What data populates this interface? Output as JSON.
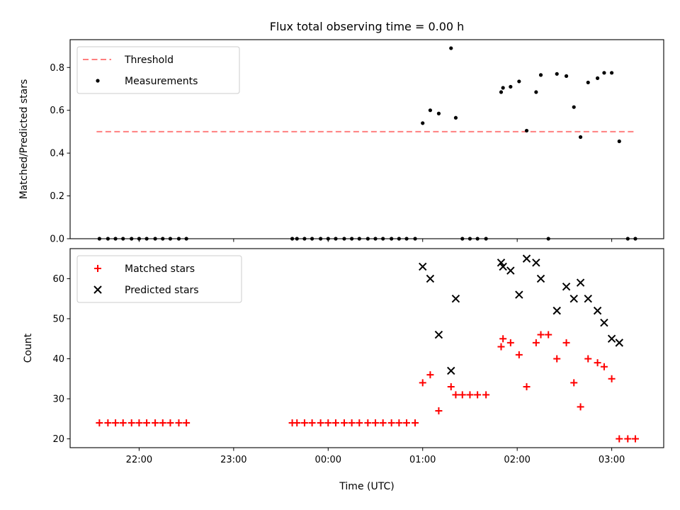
{
  "figure": {
    "title": "Flux total observing time = 0.00 h"
  },
  "chart_data": [
    {
      "type": "scatter",
      "panel": "top",
      "ylabel": "Matched/Predicted stars",
      "ylim": [
        0.0,
        0.93
      ],
      "yticks": [
        0.0,
        0.2,
        0.4,
        0.6,
        0.8
      ],
      "xlim": [
        -2.73,
        3.55
      ],
      "xtick_values": [
        -2,
        -1,
        0,
        1,
        2,
        3
      ],
      "grid": false,
      "legend_position": "upper left",
      "threshold": {
        "name": "Threshold",
        "y": 0.5,
        "x": [
          -2.45,
          3.25
        ],
        "color": "#ff7f7f",
        "style": "dashed"
      },
      "series": [
        {
          "name": "Measurements",
          "color": "#000000",
          "marker": "dot",
          "points": [
            [
              -2.42,
              0
            ],
            [
              -2.33,
              0
            ],
            [
              -2.25,
              0
            ],
            [
              -2.17,
              0
            ],
            [
              -2.08,
              0
            ],
            [
              -2.0,
              0
            ],
            [
              -1.92,
              0
            ],
            [
              -1.83,
              0
            ],
            [
              -1.75,
              0
            ],
            [
              -1.67,
              0
            ],
            [
              -1.58,
              0
            ],
            [
              -1.5,
              0
            ],
            [
              -0.38,
              0
            ],
            [
              -0.33,
              0
            ],
            [
              -0.25,
              0
            ],
            [
              -0.17,
              0
            ],
            [
              -0.08,
              0
            ],
            [
              0.0,
              0
            ],
            [
              0.08,
              0
            ],
            [
              0.17,
              0
            ],
            [
              0.25,
              0
            ],
            [
              0.33,
              0
            ],
            [
              0.42,
              0
            ],
            [
              0.5,
              0
            ],
            [
              0.58,
              0
            ],
            [
              0.67,
              0
            ],
            [
              0.75,
              0
            ],
            [
              0.83,
              0
            ],
            [
              0.92,
              0
            ],
            [
              1.0,
              0.54
            ],
            [
              1.08,
              0.6
            ],
            [
              1.17,
              0.585
            ],
            [
              1.3,
              0.89
            ],
            [
              1.35,
              0.565
            ],
            [
              1.42,
              0
            ],
            [
              1.5,
              0
            ],
            [
              1.58,
              0
            ],
            [
              1.67,
              0
            ],
            [
              1.83,
              0.685
            ],
            [
              1.85,
              0.705
            ],
            [
              1.93,
              0.71
            ],
            [
              2.02,
              0.735
            ],
            [
              2.1,
              0.505
            ],
            [
              2.2,
              0.685
            ],
            [
              2.25,
              0.765
            ],
            [
              2.33,
              0
            ],
            [
              2.42,
              0.77
            ],
            [
              2.52,
              0.76
            ],
            [
              2.6,
              0.615
            ],
            [
              2.67,
              0.475
            ],
            [
              2.75,
              0.73
            ],
            [
              2.85,
              0.75
            ],
            [
              2.92,
              0.775
            ],
            [
              3.0,
              0.775
            ],
            [
              3.08,
              0.455
            ],
            [
              3.17,
              0
            ],
            [
              3.25,
              0
            ]
          ]
        }
      ]
    },
    {
      "type": "scatter",
      "panel": "bottom",
      "xlabel": "Time (UTC)",
      "ylabel": "Count",
      "ylim": [
        17.8,
        67.5
      ],
      "yticks": [
        20,
        30,
        40,
        50,
        60
      ],
      "xlim": [
        -2.73,
        3.55
      ],
      "xtick_values": [
        -2,
        -1,
        0,
        1,
        2,
        3
      ],
      "xtick_labels": [
        "22:00",
        "23:00",
        "00:00",
        "01:00",
        "02:00",
        "03:00"
      ],
      "grid": false,
      "legend_position": "upper left",
      "series": [
        {
          "name": "Matched stars",
          "color": "#ff0000",
          "marker": "plus",
          "points": [
            [
              -2.42,
              24
            ],
            [
              -2.33,
              24
            ],
            [
              -2.25,
              24
            ],
            [
              -2.17,
              24
            ],
            [
              -2.08,
              24
            ],
            [
              -2.0,
              24
            ],
            [
              -1.92,
              24
            ],
            [
              -1.83,
              24
            ],
            [
              -1.75,
              24
            ],
            [
              -1.67,
              24
            ],
            [
              -1.58,
              24
            ],
            [
              -1.5,
              24
            ],
            [
              -0.38,
              24
            ],
            [
              -0.33,
              24
            ],
            [
              -0.25,
              24
            ],
            [
              -0.17,
              24
            ],
            [
              -0.08,
              24
            ],
            [
              0.0,
              24
            ],
            [
              0.08,
              24
            ],
            [
              0.17,
              24
            ],
            [
              0.25,
              24
            ],
            [
              0.33,
              24
            ],
            [
              0.42,
              24
            ],
            [
              0.5,
              24
            ],
            [
              0.58,
              24
            ],
            [
              0.67,
              24
            ],
            [
              0.75,
              24
            ],
            [
              0.83,
              24
            ],
            [
              0.92,
              24
            ],
            [
              1.0,
              34
            ],
            [
              1.08,
              36
            ],
            [
              1.17,
              27
            ],
            [
              1.3,
              33
            ],
            [
              1.35,
              31
            ],
            [
              1.42,
              31
            ],
            [
              1.5,
              31
            ],
            [
              1.58,
              31
            ],
            [
              1.67,
              31
            ],
            [
              1.83,
              43
            ],
            [
              1.85,
              45
            ],
            [
              1.93,
              44
            ],
            [
              2.02,
              41
            ],
            [
              2.1,
              33
            ],
            [
              2.2,
              44
            ],
            [
              2.25,
              46
            ],
            [
              2.33,
              46
            ],
            [
              2.42,
              40
            ],
            [
              2.52,
              44
            ],
            [
              2.6,
              34
            ],
            [
              2.67,
              28
            ],
            [
              2.75,
              40
            ],
            [
              2.85,
              39
            ],
            [
              2.92,
              38
            ],
            [
              3.0,
              35
            ],
            [
              3.08,
              20
            ],
            [
              3.17,
              20
            ],
            [
              3.25,
              20
            ]
          ]
        },
        {
          "name": "Predicted stars",
          "color": "#000000",
          "marker": "x",
          "points": [
            [
              1.0,
              63
            ],
            [
              1.08,
              60
            ],
            [
              1.17,
              46
            ],
            [
              1.3,
              37
            ],
            [
              1.35,
              55
            ],
            [
              1.83,
              64
            ],
            [
              1.85,
              63
            ],
            [
              1.93,
              62
            ],
            [
              2.02,
              56
            ],
            [
              2.1,
              65
            ],
            [
              2.2,
              64
            ],
            [
              2.25,
              60
            ],
            [
              2.42,
              52
            ],
            [
              2.52,
              58
            ],
            [
              2.6,
              55
            ],
            [
              2.67,
              59
            ],
            [
              2.75,
              55
            ],
            [
              2.85,
              52
            ],
            [
              2.92,
              49
            ],
            [
              3.0,
              45
            ],
            [
              3.08,
              44
            ]
          ]
        }
      ]
    }
  ]
}
